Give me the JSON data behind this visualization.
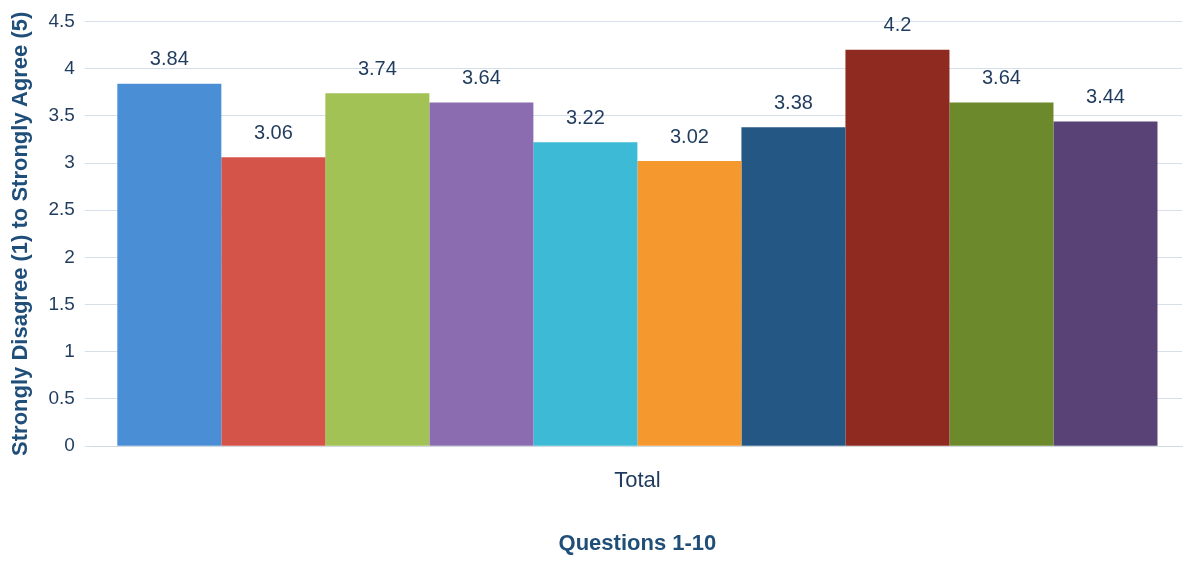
{
  "chart_data": {
    "type": "bar",
    "xlabel": "Questions 1-10",
    "ylabel": "Strongly Disagree (1) to Strongly Agree (5)",
    "categories": [
      "Total"
    ],
    "series": [
      {
        "color": "#4a8fd6",
        "values": [
          3.84
        ]
      },
      {
        "color": "#d5544a",
        "values": [
          3.06
        ]
      },
      {
        "color": "#a2c255",
        "values": [
          3.74
        ]
      },
      {
        "color": "#8c6cb0",
        "values": [
          3.64
        ]
      },
      {
        "color": "#3cbad6",
        "values": [
          3.22
        ]
      },
      {
        "color": "#f5992f",
        "values": [
          3.02
        ]
      },
      {
        "color": "#245784",
        "values": [
          3.38
        ]
      },
      {
        "color": "#8f2a20",
        "values": [
          4.2
        ]
      },
      {
        "color": "#6c892c",
        "values": [
          3.64
        ]
      },
      {
        "color": "#594275",
        "values": [
          3.44
        ]
      }
    ],
    "ylim": [
      0,
      4.5
    ],
    "yticks": [
      0,
      0.5,
      1,
      1.5,
      2,
      2.5,
      3,
      3.5,
      4,
      4.5
    ],
    "grid": "y",
    "data_labels": true
  }
}
